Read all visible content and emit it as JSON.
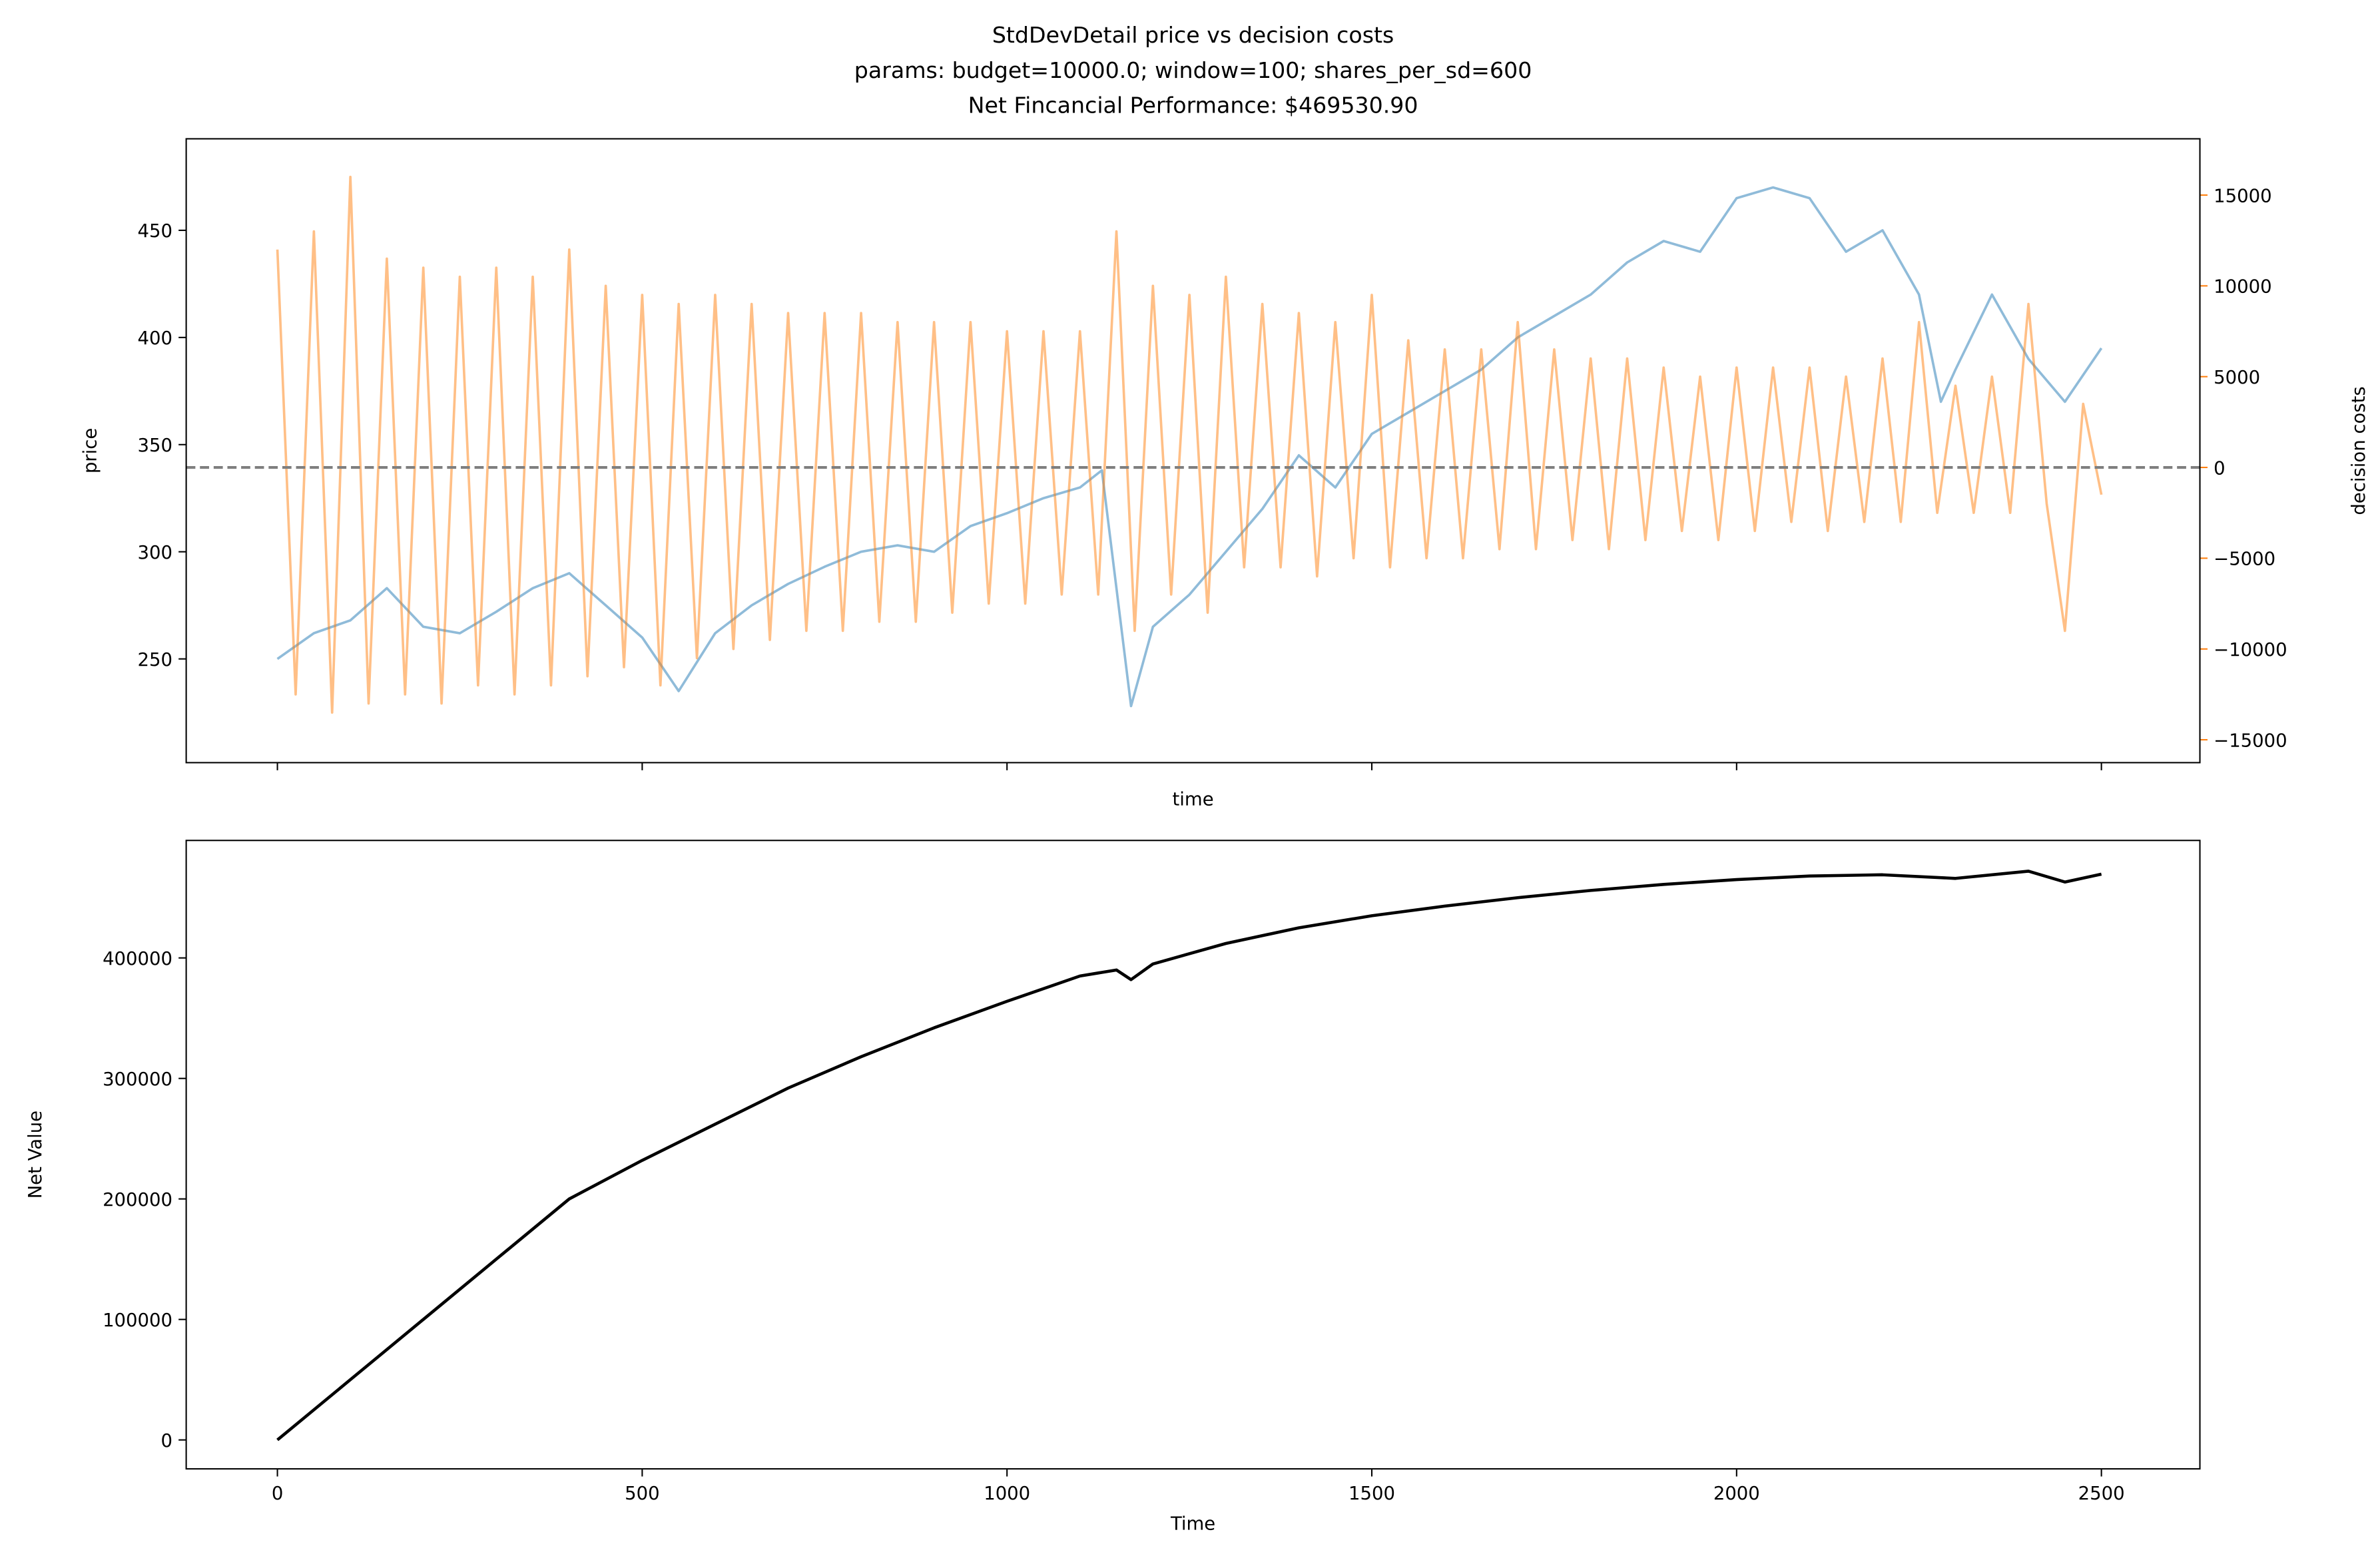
{
  "chart_data": [
    {
      "type": "line",
      "title": [
        "StdDevDetail price vs decision costs",
        "params: budget=10000.0; window=100; shares_per_sd=600",
        "Net Fincancial Performance: $469530.90"
      ],
      "xlabel": "time",
      "ylabel": "price",
      "y2label": "decision costs",
      "xlim": [
        -125,
        2635
      ],
      "ylim": [
        201.6,
        492.7
      ],
      "y2lim": [
        -16260,
        18100
      ],
      "yticks": [
        250,
        300,
        350,
        400,
        450
      ],
      "y2ticks": [
        {
          "value": -15000,
          "label": "−15000"
        },
        {
          "value": -10000,
          "label": "−10000"
        },
        {
          "value": -5000,
          "label": "−5000"
        },
        0,
        5000,
        10000,
        15000
      ],
      "hline_y2": 0,
      "hline_color": "#7f7f7f",
      "series": [
        {
          "name": "price",
          "color": "#1f77b4",
          "opacity": 0.5,
          "x": [
            0,
            50,
            100,
            150,
            200,
            250,
            300,
            350,
            400,
            450,
            500,
            550,
            600,
            650,
            700,
            750,
            800,
            850,
            900,
            950,
            1000,
            1050,
            1100,
            1130,
            1170,
            1200,
            1250,
            1300,
            1350,
            1400,
            1450,
            1500,
            1550,
            1600,
            1650,
            1700,
            1750,
            1800,
            1850,
            1900,
            1950,
            2000,
            2050,
            2100,
            2150,
            2200,
            2250,
            2280,
            2300,
            2350,
            2400,
            2450,
            2500
          ],
          "values": [
            250,
            262,
            268,
            283,
            265,
            262,
            272,
            283,
            290,
            275,
            260,
            235,
            262,
            275,
            285,
            293,
            300,
            303,
            300,
            312,
            318,
            325,
            330,
            338,
            228,
            265,
            280,
            300,
            320,
            345,
            330,
            355,
            365,
            375,
            385,
            400,
            410,
            420,
            435,
            445,
            440,
            465,
            470,
            465,
            440,
            450,
            420,
            370,
            385,
            420,
            390,
            370,
            395
          ]
        },
        {
          "name": "decision costs",
          "color": "#ff7f0e",
          "opacity": 0.5,
          "axis": "y2",
          "x": [
            0,
            25,
            50,
            75,
            100,
            125,
            150,
            175,
            200,
            225,
            250,
            275,
            300,
            325,
            350,
            375,
            400,
            425,
            450,
            475,
            500,
            525,
            550,
            575,
            600,
            625,
            650,
            675,
            700,
            725,
            750,
            775,
            800,
            825,
            850,
            875,
            900,
            925,
            950,
            975,
            1000,
            1025,
            1050,
            1075,
            1100,
            1125,
            1150,
            1175,
            1200,
            1225,
            1250,
            1275,
            1300,
            1325,
            1350,
            1375,
            1400,
            1425,
            1450,
            1475,
            1500,
            1525,
            1550,
            1575,
            1600,
            1625,
            1650,
            1675,
            1700,
            1725,
            1750,
            1775,
            1800,
            1825,
            1850,
            1875,
            1900,
            1925,
            1950,
            1975,
            2000,
            2025,
            2050,
            2075,
            2100,
            2125,
            2150,
            2175,
            2200,
            2225,
            2250,
            2275,
            2300,
            2325,
            2350,
            2375,
            2400,
            2425,
            2450,
            2475,
            2500
          ],
          "values": [
            12000,
            -12500,
            13000,
            -13500,
            16000,
            -13000,
            11500,
            -12500,
            11000,
            -13000,
            10500,
            -12000,
            11000,
            -12500,
            10500,
            -12000,
            12000,
            -11500,
            10000,
            -11000,
            9500,
            -12000,
            9000,
            -10500,
            9500,
            -10000,
            9000,
            -9500,
            8500,
            -9000,
            8500,
            -9000,
            8500,
            -8500,
            8000,
            -8500,
            8000,
            -8000,
            8000,
            -7500,
            7500,
            -7500,
            7500,
            -7000,
            7500,
            -7000,
            13000,
            -9000,
            10000,
            -7000,
            9500,
            -8000,
            10500,
            -5500,
            9000,
            -5500,
            8500,
            -6000,
            8000,
            -5000,
            9500,
            -5500,
            7000,
            -5000,
            6500,
            -5000,
            6500,
            -4500,
            8000,
            -4500,
            6500,
            -4000,
            6000,
            -4500,
            6000,
            -4000,
            5500,
            -3500,
            5000,
            -4000,
            5500,
            -3500,
            5500,
            -3000,
            5500,
            -3500,
            5000,
            -3000,
            6000,
            -3000,
            8000,
            -2500,
            4500,
            -2500,
            5000,
            -2500,
            9000,
            -2000,
            -9000,
            3500,
            -1500
          ]
        }
      ]
    },
    {
      "type": "line",
      "xlabel": "Time",
      "ylabel": "Net Value",
      "xlim": [
        -125,
        2635
      ],
      "ylim": [
        -24000,
        497500
      ],
      "xticks": [
        0,
        500,
        1000,
        1500,
        2000,
        2500
      ],
      "yticks": [
        0,
        100000,
        200000,
        300000,
        400000
      ],
      "series": [
        {
          "name": "Net Value",
          "color": "#000000",
          "opacity": 1,
          "x": [
            0,
            100,
            200,
            300,
            400,
            500,
            600,
            700,
            800,
            900,
            1000,
            1100,
            1150,
            1170,
            1200,
            1300,
            1400,
            1500,
            1600,
            1700,
            1800,
            1900,
            2000,
            2100,
            2200,
            2300,
            2400,
            2450,
            2500
          ],
          "values": [
            0,
            50000,
            100000,
            150000,
            200000,
            232000,
            262000,
            292000,
            318000,
            342000,
            364000,
            385000,
            390000,
            382000,
            395000,
            412000,
            425000,
            435000,
            443000,
            450000,
            456000,
            461000,
            465000,
            468000,
            469000,
            466000,
            472000,
            463000,
            469530.9
          ]
        }
      ]
    }
  ]
}
